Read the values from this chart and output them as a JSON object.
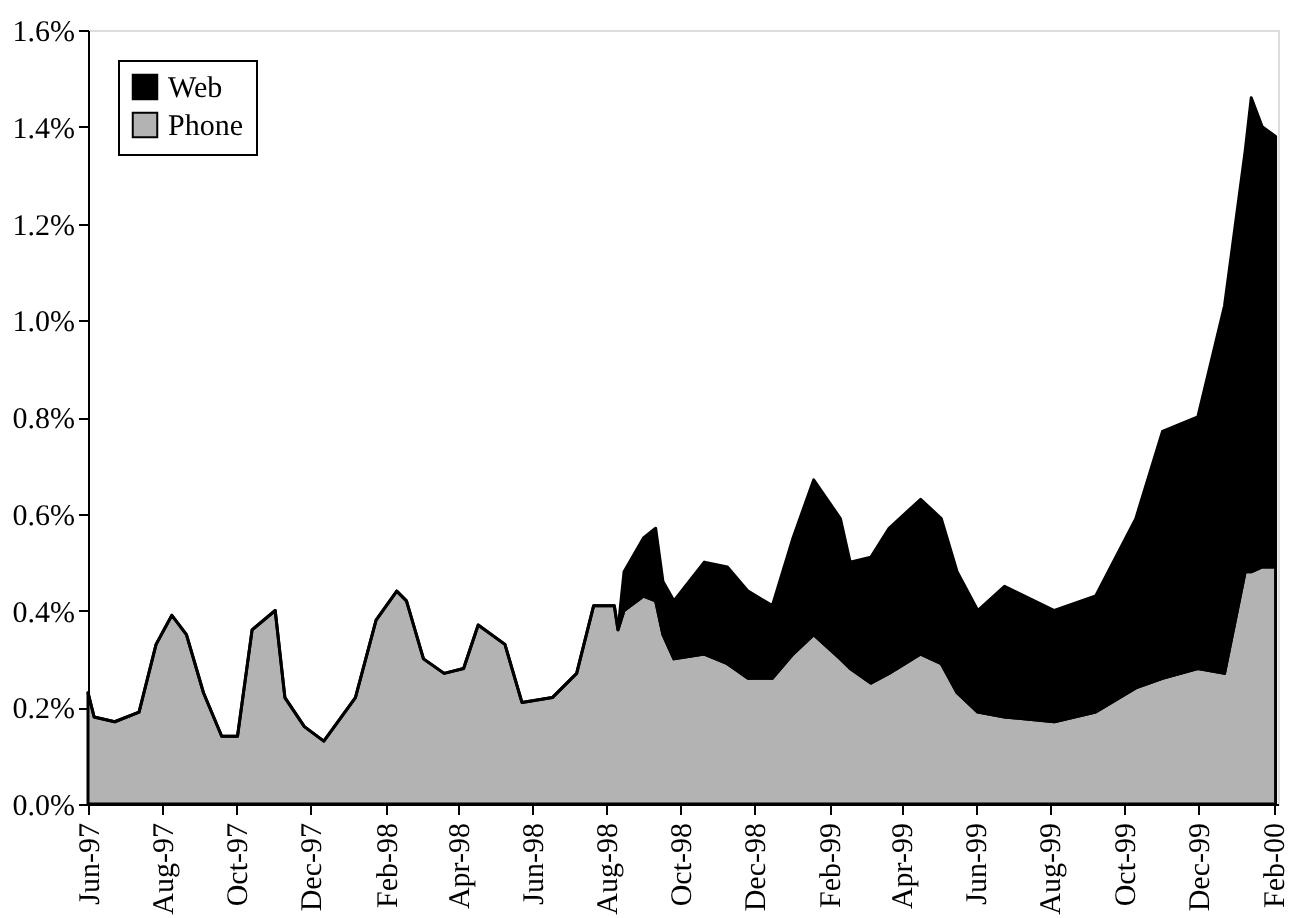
{
  "chart_data": {
    "type": "area",
    "stacked": true,
    "x": [
      "1997-06-01",
      "1997-06-06",
      "1997-06-23",
      "1997-07-13",
      "1997-07-27",
      "1997-08-09",
      "1997-08-21",
      "1997-09-04",
      "1997-09-19",
      "1997-10-02",
      "1997-10-14",
      "1997-11-02",
      "1997-11-10",
      "1997-11-26",
      "1997-12-12",
      "1998-01-07",
      "1998-01-24",
      "1998-02-10",
      "1998-02-18",
      "1998-03-04",
      "1998-03-21",
      "1998-04-06",
      "1998-04-18",
      "1998-05-10",
      "1998-05-24",
      "1998-06-18",
      "1998-07-08",
      "1998-07-22",
      "1998-08-08",
      "1998-08-11",
      "1998-08-16",
      "1998-09-01",
      "1998-09-11",
      "1998-09-17",
      "1998-09-26",
      "1998-10-21",
      "1998-11-09",
      "1998-11-26",
      "1998-12-16",
      "1999-01-02",
      "1999-01-19",
      "1999-02-10",
      "1999-02-18",
      "1999-03-07",
      "1999-03-22",
      "1999-04-17",
      "1999-05-04",
      "1999-05-17",
      "1999-06-03",
      "1999-06-25",
      "1999-08-05",
      "1999-09-08",
      "1999-10-11",
      "1999-11-02",
      "1999-12-01",
      "1999-12-23",
      "2000-01-09",
      "2000-01-14",
      "2000-01-23",
      "2000-02-03"
    ],
    "series": [
      {
        "name": "Phone",
        "color": "#b3b3b3",
        "values": [
          0.23,
          0.18,
          0.17,
          0.19,
          0.33,
          0.39,
          0.35,
          0.23,
          0.14,
          0.14,
          0.36,
          0.4,
          0.22,
          0.16,
          0.13,
          0.22,
          0.38,
          0.44,
          0.42,
          0.3,
          0.27,
          0.28,
          0.37,
          0.33,
          0.21,
          0.22,
          0.27,
          0.41,
          0.41,
          0.36,
          0.4,
          0.43,
          0.42,
          0.35,
          0.3,
          0.31,
          0.29,
          0.26,
          0.26,
          0.31,
          0.35,
          0.3,
          0.28,
          0.25,
          0.27,
          0.31,
          0.29,
          0.23,
          0.19,
          0.18,
          0.17,
          0.19,
          0.24,
          0.26,
          0.28,
          0.27,
          0.48,
          0.48,
          0.49,
          0.49
        ]
      },
      {
        "name": "Web",
        "color": "#000000",
        "values": [
          0,
          0,
          0,
          0,
          0,
          0,
          0,
          0,
          0,
          0,
          0,
          0,
          0,
          0,
          0,
          0,
          0,
          0,
          0,
          0,
          0,
          0,
          0,
          0,
          0,
          0,
          0,
          0,
          0,
          0,
          0.08,
          0.12,
          0.15,
          0.11,
          0.12,
          0.19,
          0.2,
          0.18,
          0.15,
          0.24,
          0.32,
          0.29,
          0.22,
          0.26,
          0.3,
          0.32,
          0.3,
          0.25,
          0.21,
          0.27,
          0.23,
          0.24,
          0.35,
          0.51,
          0.52,
          0.76,
          0.87,
          0.98,
          0.91,
          0.89
        ]
      }
    ],
    "xlim": [
      "1997-06-01",
      "2000-02-05"
    ],
    "xticks": [
      {
        "value": "1997-06-01",
        "label": "Jun-97"
      },
      {
        "value": "1997-08-01",
        "label": "Aug-97"
      },
      {
        "value": "1997-10-01",
        "label": "Oct-97"
      },
      {
        "value": "1997-12-01",
        "label": "Dec-97"
      },
      {
        "value": "1998-02-01",
        "label": "Feb-98"
      },
      {
        "value": "1998-04-01",
        "label": "Apr-98"
      },
      {
        "value": "1998-06-01",
        "label": "Jun-98"
      },
      {
        "value": "1998-08-01",
        "label": "Aug-98"
      },
      {
        "value": "1998-10-01",
        "label": "Oct-98"
      },
      {
        "value": "1998-12-01",
        "label": "Dec-98"
      },
      {
        "value": "1999-02-01",
        "label": "Feb-99"
      },
      {
        "value": "1999-04-01",
        "label": "Apr-99"
      },
      {
        "value": "1999-06-01",
        "label": "Jun-99"
      },
      {
        "value": "1999-08-01",
        "label": "Aug-99"
      },
      {
        "value": "1999-10-01",
        "label": "Oct-99"
      },
      {
        "value": "1999-12-01",
        "label": "Dec-99"
      },
      {
        "value": "2000-02-01",
        "label": "Feb-00"
      }
    ],
    "ylim": [
      0,
      1.6
    ],
    "yticks": [
      {
        "value": 0,
        "label": "0.0%"
      },
      {
        "value": 0.2,
        "label": "0.2%"
      },
      {
        "value": 0.4,
        "label": "0.4%"
      },
      {
        "value": 0.6,
        "label": "0.6%"
      },
      {
        "value": 0.8,
        "label": "0.8%"
      },
      {
        "value": 1.0,
        "label": "1.0%"
      },
      {
        "value": 1.2,
        "label": "1.2%"
      },
      {
        "value": 1.4,
        "label": "1.4%"
      },
      {
        "value": 1.6,
        "label": "1.6%"
      }
    ],
    "grid": false,
    "legend": "top left"
  }
}
